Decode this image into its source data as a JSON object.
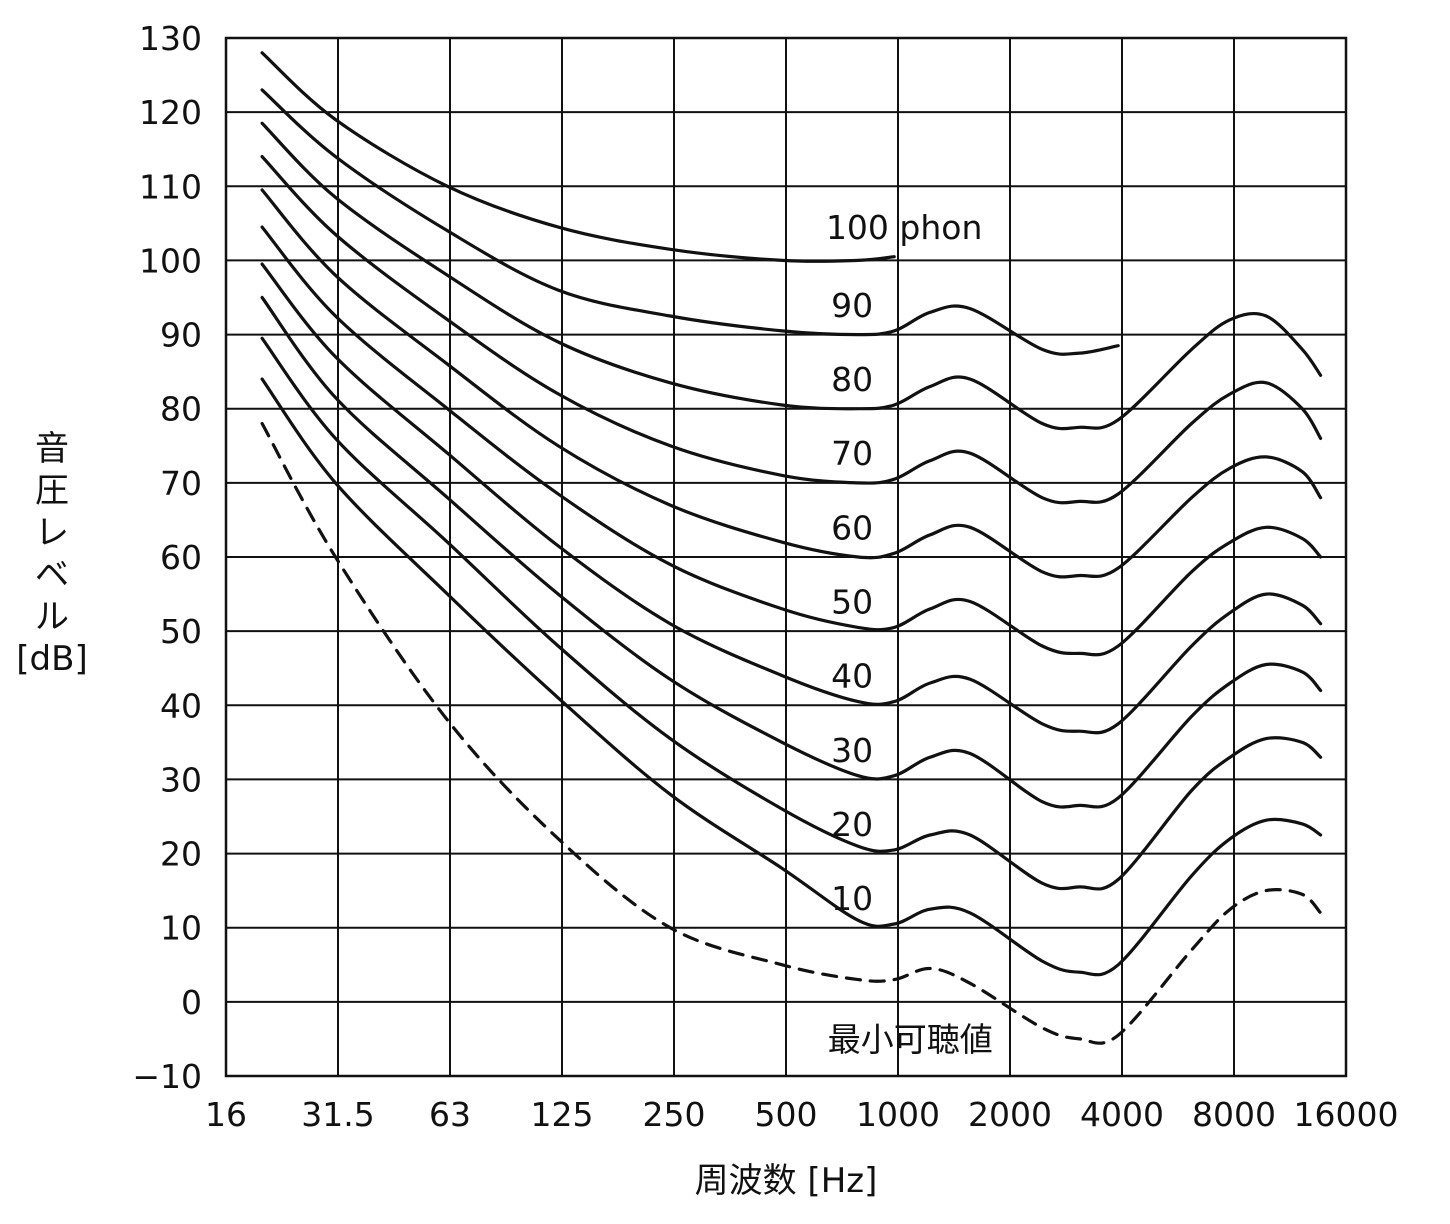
{
  "chart_data": {
    "type": "line",
    "xlabel": "周波数 [Hz]",
    "ylabel_lines": [
      "音",
      "圧",
      "レ",
      "ベ",
      "ル",
      "[dB]"
    ],
    "x_scale": "log2",
    "xlim": [
      16,
      16000
    ],
    "ylim": [
      -10,
      130
    ],
    "grid": true,
    "x_ticks": [
      16,
      31.5,
      63,
      125,
      250,
      500,
      1000,
      2000,
      4000,
      8000,
      16000
    ],
    "x_tick_labels": [
      "16",
      "31.5",
      "63",
      "125",
      "250",
      "500",
      "1000",
      "2000",
      "4000",
      "8000",
      "16000"
    ],
    "y_ticks": [
      -10,
      0,
      10,
      20,
      30,
      40,
      50,
      60,
      70,
      80,
      90,
      100,
      110,
      120,
      130
    ],
    "y_tick_labels": [
      "−10",
      "0",
      "10",
      "20",
      "30",
      "40",
      "50",
      "60",
      "70",
      "80",
      "90",
      "100",
      "110",
      "120",
      "130"
    ],
    "series": [
      {
        "label": "100 phon",
        "label_x": 1000,
        "label_y": 104.5,
        "x": [
          20,
          31.5,
          63,
          125,
          250,
          500,
          800,
          1000
        ],
        "y": [
          128,
          119,
          110,
          104.5,
          101.5,
          100,
          100,
          100.5
        ]
      },
      {
        "label": "90",
        "label_x": 900,
        "label_y": 94,
        "x": [
          20,
          31.5,
          63,
          125,
          250,
          500,
          800,
          1000,
          1250,
          1600,
          2500,
          3150,
          4000
        ],
        "y": [
          123,
          114,
          104,
          96,
          92.5,
          90.5,
          90,
          90.5,
          93,
          93.5,
          88,
          87.5,
          88.5
        ]
      },
      {
        "label": "80",
        "label_x": 900,
        "label_y": 84,
        "x": [
          20,
          31.5,
          63,
          125,
          250,
          500,
          800,
          1000,
          1250,
          1600,
          2500,
          3150,
          4000,
          6300,
          8000,
          10000,
          12500,
          14000
        ],
        "y": [
          118.5,
          108.5,
          98,
          89,
          83.5,
          80.5,
          80,
          80.5,
          83,
          84,
          78,
          77.5,
          78.5,
          88,
          92,
          92.5,
          88,
          84.5
        ]
      },
      {
        "label": "70",
        "label_x": 900,
        "label_y": 74,
        "x": [
          20,
          31.5,
          63,
          125,
          250,
          500,
          800,
          1000,
          1250,
          1600,
          2500,
          3150,
          4000,
          6300,
          8000,
          10000,
          12500,
          14000
        ],
        "y": [
          114,
          103.5,
          92,
          82,
          75,
          71,
          70,
          70.5,
          73,
          74,
          68,
          67.5,
          68.5,
          78,
          82,
          83.5,
          80,
          76
        ]
      },
      {
        "label": "60",
        "label_x": 900,
        "label_y": 64,
        "x": [
          20,
          31.5,
          63,
          125,
          250,
          500,
          800,
          1000,
          1250,
          1600,
          2500,
          3150,
          4000,
          6300,
          8000,
          10000,
          12500,
          14000
        ],
        "y": [
          109.5,
          98,
          86,
          75,
          67,
          62,
          60,
          60.5,
          63,
          64,
          58,
          57.5,
          58.5,
          68,
          72,
          73.5,
          71.5,
          68
        ]
      },
      {
        "label": "50",
        "label_x": 900,
        "label_y": 54,
        "x": [
          20,
          31.5,
          63,
          125,
          250,
          500,
          800,
          1000,
          1250,
          1600,
          2500,
          3150,
          4000,
          6300,
          8000,
          10000,
          12500,
          14000
        ],
        "y": [
          104.5,
          92.5,
          80,
          68.5,
          59,
          53,
          50.5,
          50.5,
          53,
          54,
          48,
          47,
          48,
          58,
          62,
          64,
          62.5,
          60
        ]
      },
      {
        "label": "40",
        "label_x": 900,
        "label_y": 44,
        "x": [
          20,
          31.5,
          63,
          125,
          250,
          500,
          800,
          1000,
          1250,
          1600,
          2500,
          3150,
          4000,
          6300,
          8000,
          10000,
          12500,
          14000
        ],
        "y": [
          99.5,
          87,
          74,
          61.5,
          51,
          44,
          40.5,
          40.5,
          43,
          43.5,
          37.5,
          36.5,
          37.5,
          48,
          52.5,
          55,
          53.5,
          51
        ]
      },
      {
        "label": "30",
        "label_x": 900,
        "label_y": 34,
        "x": [
          20,
          31.5,
          63,
          125,
          250,
          500,
          800,
          1000,
          1250,
          1600,
          2500,
          3150,
          4000,
          6300,
          8000,
          10000,
          12500,
          14000
        ],
        "y": [
          95,
          81.5,
          68,
          55,
          43.5,
          35,
          30.5,
          30.5,
          33,
          33.5,
          27,
          26.5,
          27.5,
          38.5,
          43,
          45.5,
          44.5,
          42
        ]
      },
      {
        "label": "20",
        "label_x": 900,
        "label_y": 24,
        "x": [
          20,
          31.5,
          63,
          125,
          250,
          500,
          800,
          1000,
          1250,
          1600,
          2500,
          3150,
          4000,
          6300,
          8000,
          10000,
          12500,
          14000
        ],
        "y": [
          89.5,
          76,
          62,
          48,
          35.5,
          26,
          21,
          20.5,
          22.5,
          22.5,
          16,
          15.5,
          16.5,
          28.5,
          33,
          35.5,
          35,
          33
        ]
      },
      {
        "label": "10",
        "label_x": 900,
        "label_y": 14,
        "x": [
          20,
          31.5,
          63,
          125,
          250,
          500,
          800,
          1000,
          1250,
          1600,
          2500,
          3150,
          4000,
          6300,
          8000,
          10000,
          12500,
          14000
        ],
        "y": [
          84,
          70,
          55,
          41,
          28,
          18,
          11,
          10.5,
          12.5,
          12,
          5.5,
          4,
          5,
          17,
          22,
          24.5,
          24,
          22.5
        ]
      },
      {
        "label": "最小可聴値",
        "label_x": 1250,
        "label_y": -5,
        "dashed": true,
        "x": [
          20,
          31.5,
          63,
          125,
          250,
          500,
          800,
          1000,
          1250,
          1600,
          2500,
          3150,
          4000,
          6300,
          8000,
          10000,
          12500,
          14000
        ],
        "y": [
          78,
          60,
          38,
          22,
          10,
          5,
          3,
          3,
          4.5,
          2.5,
          -3.5,
          -5,
          -4.5,
          7,
          12.5,
          15,
          14.5,
          12
        ]
      }
    ]
  }
}
